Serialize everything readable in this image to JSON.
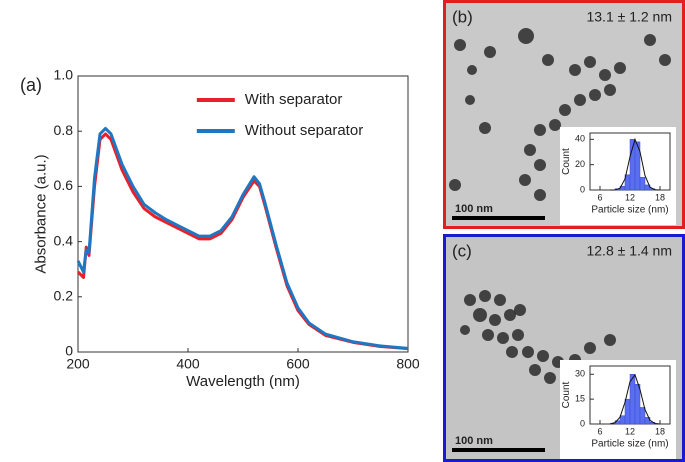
{
  "chart_data": [
    {
      "type": "line",
      "xlabel": "Wavelength (nm)",
      "ylabel": "Absorbance (a.u.)",
      "x": [
        200,
        210,
        215,
        220,
        230,
        240,
        250,
        260,
        280,
        300,
        320,
        340,
        360,
        380,
        400,
        420,
        440,
        460,
        480,
        500,
        520,
        530,
        540,
        560,
        580,
        600,
        620,
        650,
        700,
        750,
        800
      ],
      "series": [
        {
          "name": "With separator",
          "color": "#e8202a",
          "values": [
            0.29,
            0.27,
            0.38,
            0.35,
            0.6,
            0.77,
            0.79,
            0.77,
            0.66,
            0.58,
            0.52,
            0.49,
            0.47,
            0.45,
            0.43,
            0.41,
            0.41,
            0.43,
            0.48,
            0.56,
            0.62,
            0.6,
            0.53,
            0.38,
            0.24,
            0.15,
            0.1,
            0.06,
            0.035,
            0.02,
            0.012
          ]
        },
        {
          "name": "Without separator",
          "color": "#1f77c4",
          "values": [
            0.33,
            0.29,
            0.37,
            0.36,
            0.63,
            0.79,
            0.81,
            0.79,
            0.68,
            0.6,
            0.535,
            0.505,
            0.48,
            0.46,
            0.44,
            0.42,
            0.42,
            0.44,
            0.49,
            0.57,
            0.635,
            0.61,
            0.54,
            0.39,
            0.25,
            0.16,
            0.105,
            0.065,
            0.037,
            0.022,
            0.013
          ]
        }
      ],
      "xlim": [
        200,
        800
      ],
      "xticks": [
        200,
        400,
        600,
        800
      ],
      "ylim": [
        0,
        1
      ],
      "yticks": [
        0,
        0.2,
        0.4,
        0.6,
        0.8,
        {
          "value": 1,
          "label": "1.0"
        }
      ],
      "legend": "upper-right"
    },
    {
      "type": "histogram",
      "xlabel": "Particle size (nm)",
      "ylabel": "Count",
      "color": "#5a6ef0",
      "bins": [
        9,
        10,
        11,
        12,
        13,
        14,
        15,
        16,
        17
      ],
      "values": [
        1,
        3,
        12,
        40,
        38,
        10,
        4,
        1
      ],
      "fit": {
        "x": [
          8,
          9,
          10,
          11,
          12,
          13,
          14,
          15,
          16,
          17,
          18
        ],
        "values": [
          0,
          0.1,
          1.4,
          8.7,
          26.3,
          40,
          30.2,
          11.4,
          2.2,
          0.2,
          0
        ]
      },
      "xlim": [
        4,
        20
      ],
      "xticks": [
        6,
        12,
        18
      ],
      "ylim": [
        0,
        45
      ],
      "yticks": [
        0,
        20,
        40
      ]
    },
    {
      "type": "histogram",
      "xlabel": "Particle size (nm)",
      "ylabel": "Count",
      "color": "#5a6ef0",
      "bins": [
        9,
        10,
        11,
        12,
        13,
        14,
        15,
        16,
        17
      ],
      "values": [
        2,
        5,
        15,
        30,
        24,
        10,
        4,
        1
      ],
      "fit": {
        "x": [
          8,
          9,
          10,
          11,
          12,
          13,
          14,
          15,
          16,
          17,
          18
        ],
        "values": [
          0.1,
          0.8,
          4.1,
          13.1,
          25.5,
          29.7,
          20.8,
          8.7,
          2.2,
          0.3,
          0
        ]
      },
      "xlim": [
        4,
        20
      ],
      "xticks": [
        6,
        12,
        18
      ],
      "ylim": [
        0,
        35
      ],
      "yticks": [
        0,
        15,
        30
      ]
    }
  ],
  "figure": {
    "panels": [
      {
        "label": "(a)"
      },
      {
        "label": "(b)",
        "annotation": "13.1 ± 1.2 nm",
        "scale_bar": "100 nm"
      },
      {
        "label": "(c)",
        "annotation": "12.8 ± 1.4 nm",
        "scale_bar": "100 nm"
      }
    ]
  }
}
